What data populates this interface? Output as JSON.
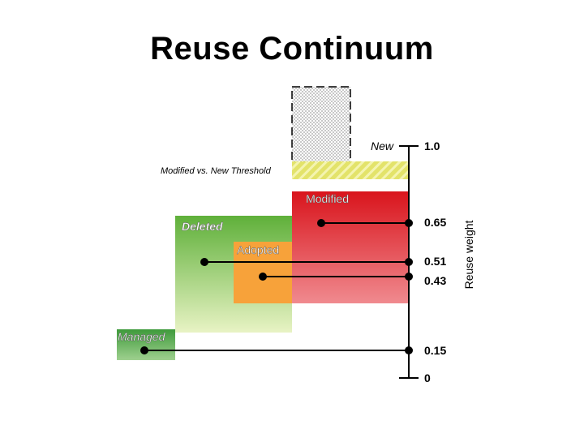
{
  "title": "Reuse Continuum",
  "axis": {
    "label": "Reuse weight",
    "ticks": [
      {
        "label": "1.0",
        "value": 1.0
      },
      {
        "label": "0.65",
        "value": 0.65
      },
      {
        "label": "0.51",
        "value": 0.51
      },
      {
        "label": "0.43",
        "value": 0.43
      },
      {
        "label": "0.15",
        "value": 0.15
      },
      {
        "label": "0",
        "value": 0
      }
    ]
  },
  "categories": {
    "new": "New",
    "threshold": "Modified vs. New Threshold",
    "modified": "Modified",
    "deleted": "Deleted",
    "adopted": "Adopted",
    "managed": "Managed"
  },
  "colors": {
    "modified_top": "#d9141c",
    "modified_bottom": "#f08a8f",
    "deleted_top": "#5fb03a",
    "deleted_bottom": "#e8f3c4",
    "adopted": "#f7a23a",
    "managed_top": "#3e9a3b",
    "managed_bottom": "#9fd08f",
    "threshold": "#e3e36a"
  }
}
